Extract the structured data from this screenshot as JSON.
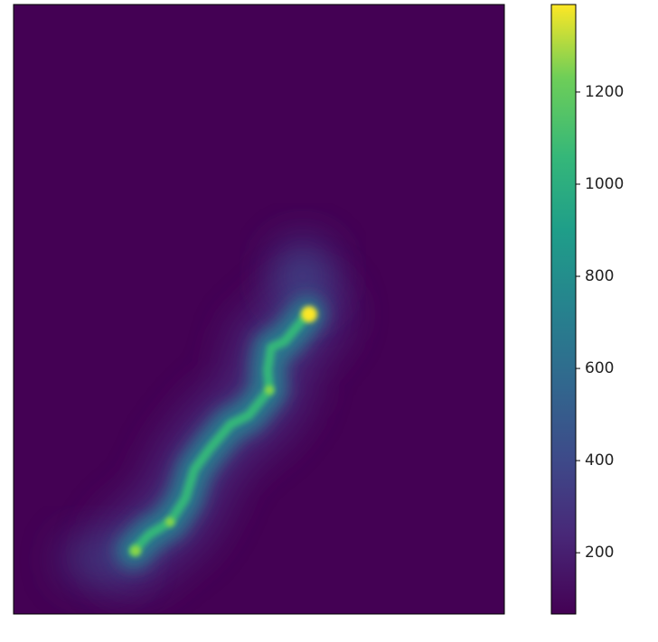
{
  "chart_data": {
    "type": "image",
    "colorbar": {
      "lim": [
        67,
        1390
      ],
      "ticks": [
        200,
        400,
        600,
        800,
        1000,
        1200
      ]
    }
  }
}
